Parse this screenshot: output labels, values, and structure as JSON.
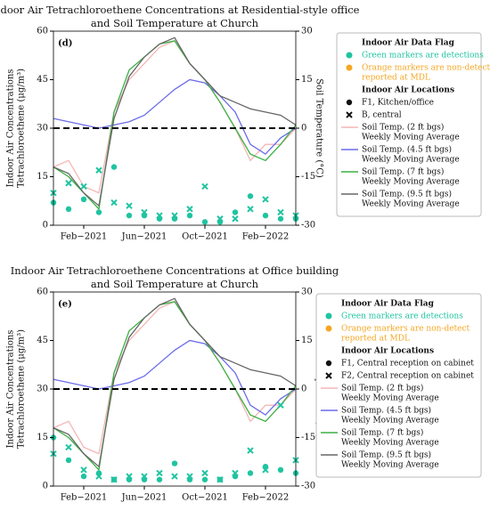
{
  "chart_data": [
    {
      "type": "line",
      "panel_label": "(d)",
      "title": [
        "Indoor Air Tetrachloroethene Concentrations at Residential-style office",
        "and Soil Temperature at Church"
      ],
      "ylabel": [
        "Indoor Air Concentrations",
        "Tetrachloroethene (μg/m³)"
      ],
      "y2label": "Soil Temperature (°C)",
      "x": [
        "2020-12",
        "2021-01",
        "2021-02",
        "2021-03",
        "2021-04",
        "2021-05",
        "2021-06",
        "2021-07",
        "2021-08",
        "2021-09",
        "2021-10",
        "2021-11",
        "2021-12",
        "2022-01",
        "2022-02",
        "2022-03",
        "2022-04"
      ],
      "xlim": [
        "2020-12",
        "2022-04"
      ],
      "xticks": [
        {
          "value": "2021-02",
          "label": "Feb−2021"
        },
        {
          "value": "2021-06",
          "label": "Jun−2021"
        },
        {
          "value": "2021-10",
          "label": "Oct−2021"
        },
        {
          "value": "2022-02",
          "label": "Feb−2022"
        }
      ],
      "ylim": [
        0,
        60
      ],
      "yticks": [
        0,
        15,
        30,
        45,
        60
      ],
      "y2lim": [
        -30,
        30
      ],
      "y2ticks": [
        -30,
        -15,
        0,
        15,
        30
      ],
      "hline": 30,
      "series": [
        {
          "name": "F1, Kitchen/office",
          "marker": "circle",
          "color": "#1fc4a0",
          "values": [
            7,
            5,
            8,
            4,
            18,
            3,
            3,
            2,
            2,
            3,
            1,
            1,
            4,
            9,
            3,
            2,
            2
          ]
        },
        {
          "name": "B, central",
          "marker": "x",
          "color": "#1fc4a0",
          "values": [
            10,
            13,
            12,
            17,
            7,
            6,
            4,
            3,
            3,
            5,
            12,
            2,
            2,
            5,
            8,
            4,
            3
          ]
        },
        {
          "name": [
            "Soil Temp. (2 ft bgs)",
            "Weekly Moving Average"
          ],
          "axis": "y2",
          "color": "#f4b6b6",
          "values": [
            -12,
            -10,
            -18,
            -20,
            5,
            15,
            20,
            25,
            27,
            20,
            15,
            8,
            0,
            -10,
            -5,
            -5,
            0
          ]
        },
        {
          "name": [
            "Soil Temp. (4.5 ft bgs)",
            "Weekly Moving Average"
          ],
          "axis": "y2",
          "color": "#6b6bea",
          "values": [
            3,
            2,
            1,
            0,
            1,
            2,
            4,
            8,
            12,
            15,
            14,
            10,
            5,
            -5,
            -8,
            -3,
            0
          ]
        },
        {
          "name": [
            "Soil Temp. (7 ft bgs)",
            "Weekly Moving Average"
          ],
          "axis": "y2",
          "color": "#3cb043",
          "values": [
            -12,
            -15,
            -20,
            -25,
            5,
            18,
            22,
            26,
            27,
            20,
            15,
            8,
            0,
            -8,
            -10,
            -5,
            1
          ]
        },
        {
          "name": [
            "Soil Temp. (9.5 ft bgs)",
            "Weekly Moving Average"
          ],
          "axis": "y2",
          "color": "#666666",
          "values": [
            -12,
            -14,
            -20,
            -24,
            3,
            16,
            22,
            26,
            28,
            20,
            15,
            10,
            8,
            6,
            5,
            4,
            1
          ]
        }
      ],
      "legend": {
        "flag_title": "Indoor Air Data Flag",
        "flags": [
          {
            "label": [
              "Green markers are detections"
            ],
            "color": "#1fc4a0"
          },
          {
            "label": [
              "Orange markers are non-detect",
              "reported at MDL"
            ],
            "color": "#f5a623"
          }
        ],
        "locations_title": "Indoor Air Locations"
      }
    },
    {
      "type": "line",
      "panel_label": "(e)",
      "title": [
        "Indoor Air Tetrachloroethene Concentrations at Office building",
        "and Soil Temperature at Church"
      ],
      "ylabel": [
        "Indoor Air Concentrations",
        "Tetrachloroethene (μg/m³)"
      ],
      "y2label": "Soil Temperature (°C)",
      "x": [
        "2020-12",
        "2021-01",
        "2021-02",
        "2021-03",
        "2021-04",
        "2021-05",
        "2021-06",
        "2021-07",
        "2021-08",
        "2021-09",
        "2021-10",
        "2021-11",
        "2021-12",
        "2022-01",
        "2022-02",
        "2022-03",
        "2022-04"
      ],
      "xlim": [
        "2020-12",
        "2022-04"
      ],
      "xticks": [
        {
          "value": "2021-02",
          "label": "Feb−2021"
        },
        {
          "value": "2021-06",
          "label": "Jun−2021"
        },
        {
          "value": "2021-10",
          "label": "Oct−2021"
        },
        {
          "value": "2022-02",
          "label": "Feb−2022"
        }
      ],
      "ylim": [
        0,
        60
      ],
      "yticks": [
        0,
        15,
        30,
        45,
        60
      ],
      "y2lim": [
        -30,
        30
      ],
      "y2ticks": [
        -30,
        -15,
        0,
        15,
        30
      ],
      "hline": 30,
      "series": [
        {
          "name": "F1, Central reception on cabinet",
          "marker": "circle",
          "color": "#1fc4a0",
          "values": [
            15,
            8,
            3,
            4,
            2,
            2,
            2,
            2,
            7,
            2,
            2,
            2,
            3,
            4,
            6,
            5,
            4
          ]
        },
        {
          "name": "F2, Central reception on cabinet",
          "marker": "x",
          "color": "#1fc4a0",
          "values": [
            10,
            12,
            5,
            3,
            2,
            3,
            3,
            4,
            3,
            3,
            4,
            2,
            4,
            11,
            5,
            25,
            8
          ]
        },
        {
          "name": [
            "Soil Temp. (2 ft bgs)",
            "Weekly Moving Average"
          ],
          "axis": "y2",
          "color": "#f4b6b6",
          "values": [
            -12,
            -10,
            -18,
            -20,
            5,
            15,
            20,
            25,
            27,
            20,
            15,
            8,
            0,
            -10,
            -5,
            -5,
            0
          ]
        },
        {
          "name": [
            "Soil Temp. (4.5 ft bgs)",
            "Weekly Moving Average"
          ],
          "axis": "y2",
          "color": "#6b6bea",
          "values": [
            3,
            2,
            1,
            0,
            1,
            2,
            4,
            8,
            12,
            15,
            14,
            10,
            5,
            -5,
            -8,
            -3,
            0
          ]
        },
        {
          "name": [
            "Soil Temp. (7 ft bgs)",
            "Weekly Moving Average"
          ],
          "axis": "y2",
          "color": "#3cb043",
          "values": [
            -12,
            -15,
            -20,
            -25,
            5,
            18,
            22,
            26,
            27,
            20,
            15,
            8,
            0,
            -8,
            -10,
            -5,
            1
          ]
        },
        {
          "name": [
            "Soil Temp. (9.5 ft bgs)",
            "Weekly Moving Average"
          ],
          "axis": "y2",
          "color": "#666666",
          "values": [
            -12,
            -14,
            -20,
            -24,
            3,
            16,
            22,
            26,
            28,
            20,
            15,
            10,
            8,
            6,
            5,
            4,
            1
          ]
        }
      ],
      "legend": {
        "flag_title": "Indoor Air Data Flag",
        "flags": [
          {
            "label": [
              "Green markers are detections"
            ],
            "color": "#1fc4a0"
          },
          {
            "label": [
              "Orange markers are non-detect",
              "reported at MDL"
            ],
            "color": "#f5a623"
          }
        ],
        "locations_title": "Indoor Air Locations"
      }
    }
  ]
}
